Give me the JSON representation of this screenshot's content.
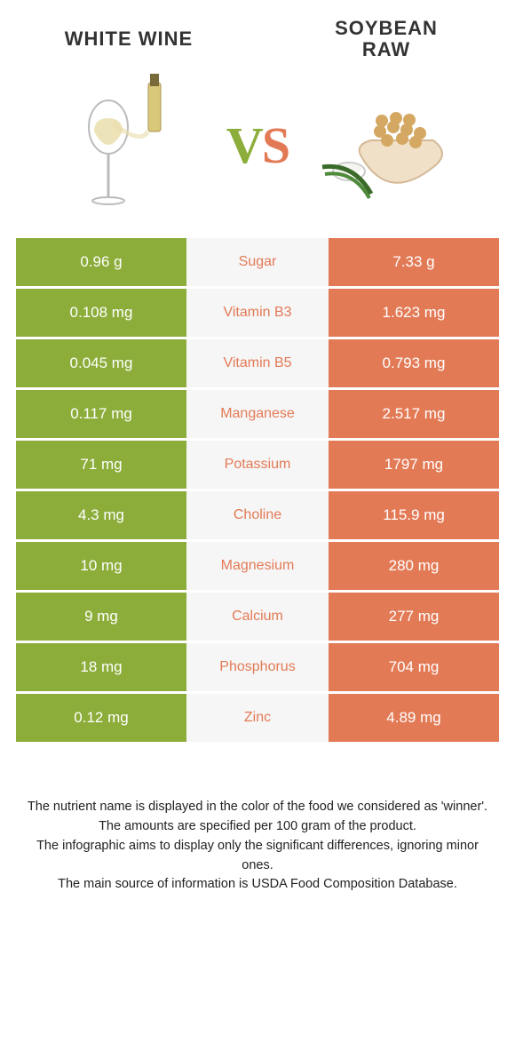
{
  "header": {
    "left_title": "WHITE WINE",
    "right_title_line1": "SOYBEAN",
    "right_title_line2": "RAW",
    "vs_v": "V",
    "vs_s": "S"
  },
  "colors": {
    "green": "#8cad3a",
    "orange": "#e37a56",
    "mid_bg": "#f6f6f6"
  },
  "rows": [
    {
      "left": "0.96 g",
      "label": "Sugar",
      "right": "7.33 g",
      "winner": "orange"
    },
    {
      "left": "0.108 mg",
      "label": "Vitamin B3",
      "right": "1.623 mg",
      "winner": "orange"
    },
    {
      "left": "0.045 mg",
      "label": "Vitamin B5",
      "right": "0.793 mg",
      "winner": "orange"
    },
    {
      "left": "0.117 mg",
      "label": "Manganese",
      "right": "2.517 mg",
      "winner": "orange"
    },
    {
      "left": "71 mg",
      "label": "Potassium",
      "right": "1797 mg",
      "winner": "orange"
    },
    {
      "left": "4.3 mg",
      "label": "Choline",
      "right": "115.9 mg",
      "winner": "orange"
    },
    {
      "left": "10 mg",
      "label": "Magnesium",
      "right": "280 mg",
      "winner": "orange"
    },
    {
      "left": "9 mg",
      "label": "Calcium",
      "right": "277 mg",
      "winner": "orange"
    },
    {
      "left": "18 mg",
      "label": "Phosphorus",
      "right": "704 mg",
      "winner": "orange"
    },
    {
      "left": "0.12 mg",
      "label": "Zinc",
      "right": "4.89 mg",
      "winner": "orange"
    }
  ],
  "footnotes": {
    "line1": "The nutrient name is displayed in the color of the food we considered as 'winner'.",
    "line2": "The amounts are specified per 100 gram of the product.",
    "line3": "The infographic aims to display only the significant differences, ignoring minor ones.",
    "line4": "The main source of information is USDA Food Composition Database."
  }
}
